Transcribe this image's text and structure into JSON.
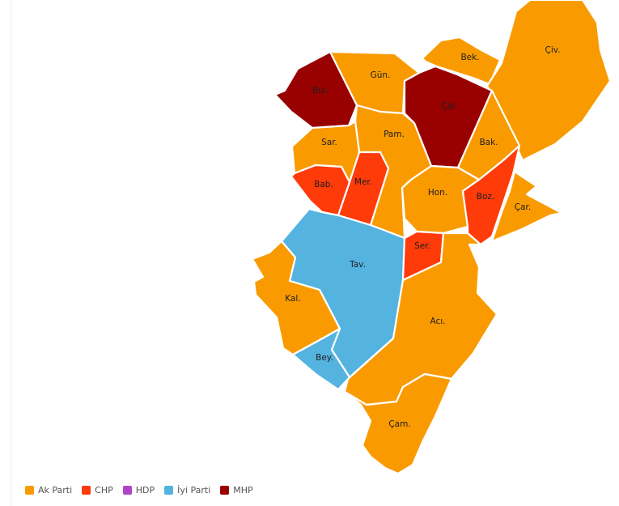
{
  "colors": {
    "ak_parti": "#f99b00",
    "chp": "#ff3b0a",
    "hdp": "#b043c8",
    "iyi_parti": "#55b3df",
    "mhp": "#990000"
  },
  "legend": [
    {
      "label": "Ak Parti",
      "party": "ak_parti"
    },
    {
      "label": "CHP",
      "party": "chp"
    },
    {
      "label": "HDP",
      "party": "hdp"
    },
    {
      "label": "İyi Parti",
      "party": "iyi_parti"
    },
    {
      "label": "MHP",
      "party": "mhp"
    }
  ],
  "districts": [
    {
      "id": "bul",
      "label": "Bul.",
      "party": "mhp"
    },
    {
      "id": "gun",
      "label": "Gün.",
      "party": "ak_parti"
    },
    {
      "id": "bek",
      "label": "Bek.",
      "party": "ak_parti"
    },
    {
      "id": "civ",
      "label": "Çiv.",
      "party": "ak_parti"
    },
    {
      "id": "cal",
      "label": "Çal.",
      "party": "mhp"
    },
    {
      "id": "pam",
      "label": "Pam.",
      "party": "ak_parti"
    },
    {
      "id": "sar",
      "label": "Sar.",
      "party": "ak_parti"
    },
    {
      "id": "bak",
      "label": "Bak.",
      "party": "ak_parti"
    },
    {
      "id": "bab",
      "label": "Bab.",
      "party": "chp"
    },
    {
      "id": "mer",
      "label": "Mer.",
      "party": "chp"
    },
    {
      "id": "hon",
      "label": "Hon.",
      "party": "ak_parti"
    },
    {
      "id": "boz",
      "label": "Boz.",
      "party": "chp"
    },
    {
      "id": "car",
      "label": "Çar.",
      "party": "ak_parti"
    },
    {
      "id": "tav",
      "label": "Tav.",
      "party": "iyi_parti"
    },
    {
      "id": "ser",
      "label": "Ser.",
      "party": "chp"
    },
    {
      "id": "kal",
      "label": "Kal.",
      "party": "ak_parti"
    },
    {
      "id": "aci",
      "label": "Acı.",
      "party": "ak_parti"
    },
    {
      "id": "bey",
      "label": "Bey.",
      "party": "iyi_parti"
    },
    {
      "id": "cam",
      "label": "Çam.",
      "party": "ak_parti"
    }
  ]
}
